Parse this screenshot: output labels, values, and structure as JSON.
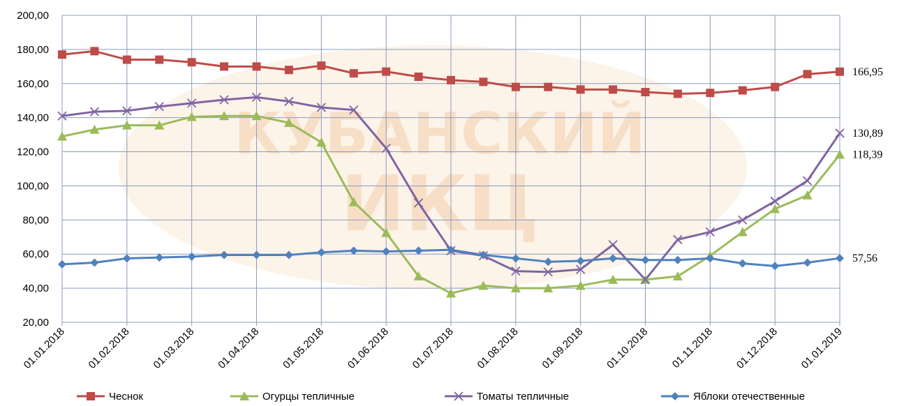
{
  "chart_data": {
    "type": "line",
    "watermark": [
      "КУБАНСКИЙ",
      "ИКЦ"
    ],
    "categories": [
      "01.01.2018",
      null,
      "01.02.2018",
      null,
      "01.03.2018",
      null,
      "01.04.2018",
      null,
      "01.05.2018",
      null,
      "01.06.2018",
      null,
      "01.07.2018",
      null,
      "01.08.2018",
      null,
      "01.09.2018",
      null,
      "01.10.2018",
      null,
      "01.11.2018",
      null,
      "01.12.2018",
      null,
      "01.01.2019"
    ],
    "ylim": [
      20,
      200
    ],
    "yticks": [
      {
        "value": 20,
        "label": "20,00"
      },
      {
        "value": 40,
        "label": "40,00"
      },
      {
        "value": 60,
        "label": "60,00"
      },
      {
        "value": 80,
        "label": "80,00"
      },
      {
        "value": 100,
        "label": "100,00"
      },
      {
        "value": 120,
        "label": "120,00"
      },
      {
        "value": 140,
        "label": "140,00"
      },
      {
        "value": 160,
        "label": "160,00"
      },
      {
        "value": 180,
        "label": "180,00"
      },
      {
        "value": 200,
        "label": "200,00"
      }
    ],
    "grid": true,
    "legend": "bottom",
    "series": [
      {
        "name": "Чеснок",
        "color": "#be4b48",
        "marker": "square",
        "values": [
          177,
          179,
          174,
          174,
          172.5,
          170,
          170,
          168,
          170.5,
          166,
          167,
          164,
          162,
          161,
          158,
          158,
          156.5,
          156.5,
          155,
          154,
          154.5,
          156,
          158,
          165.5,
          166.95
        ],
        "value_labels": [
          null,
          null,
          null,
          null,
          null,
          null,
          null,
          null,
          null,
          null,
          null,
          null,
          null,
          null,
          null,
          null,
          null,
          null,
          null,
          null,
          null,
          null,
          null,
          null,
          "166,95"
        ]
      },
      {
        "name": "Огурцы тепличные",
        "color": "#9bbb59",
        "marker": "triangle",
        "values": [
          129,
          133,
          135.5,
          135.5,
          140.5,
          141,
          141,
          137,
          125.5,
          90.5,
          72.5,
          47,
          37,
          41.5,
          40,
          40,
          41.5,
          45,
          45,
          47,
          59,
          73,
          86.5,
          94.5,
          118.39
        ],
        "value_labels": [
          null,
          null,
          null,
          null,
          null,
          null,
          null,
          null,
          null,
          null,
          null,
          null,
          null,
          null,
          null,
          null,
          null,
          null,
          null,
          null,
          null,
          null,
          null,
          null,
          "118,39"
        ]
      },
      {
        "name": "Томаты тепличные",
        "color": "#8064a2",
        "marker": "x",
        "values": [
          141,
          143.5,
          144,
          146.5,
          148.5,
          150.5,
          152,
          149.5,
          146,
          144.5,
          122,
          90,
          62,
          59,
          50,
          49.5,
          51,
          65.5,
          45,
          68.5,
          73,
          80,
          91,
          103,
          130.89
        ],
        "value_labels": [
          null,
          null,
          null,
          null,
          null,
          null,
          null,
          null,
          null,
          null,
          null,
          null,
          null,
          null,
          null,
          null,
          null,
          null,
          null,
          null,
          null,
          null,
          null,
          null,
          "130,89"
        ]
      },
      {
        "name": "Яблоки отечественные",
        "color": "#4f81bd",
        "marker": "diamond",
        "values": [
          54,
          55,
          57.5,
          58,
          58.5,
          59.5,
          59.5,
          59.5,
          61,
          62,
          61.5,
          62,
          62.5,
          59.5,
          57.5,
          55.5,
          56,
          57.5,
          56.5,
          56.5,
          57.5,
          54.5,
          53,
          55,
          57.56
        ],
        "value_labels": [
          null,
          null,
          null,
          null,
          null,
          null,
          null,
          null,
          null,
          null,
          null,
          null,
          null,
          null,
          null,
          null,
          null,
          null,
          null,
          null,
          null,
          null,
          null,
          null,
          "57,56"
        ]
      }
    ]
  }
}
